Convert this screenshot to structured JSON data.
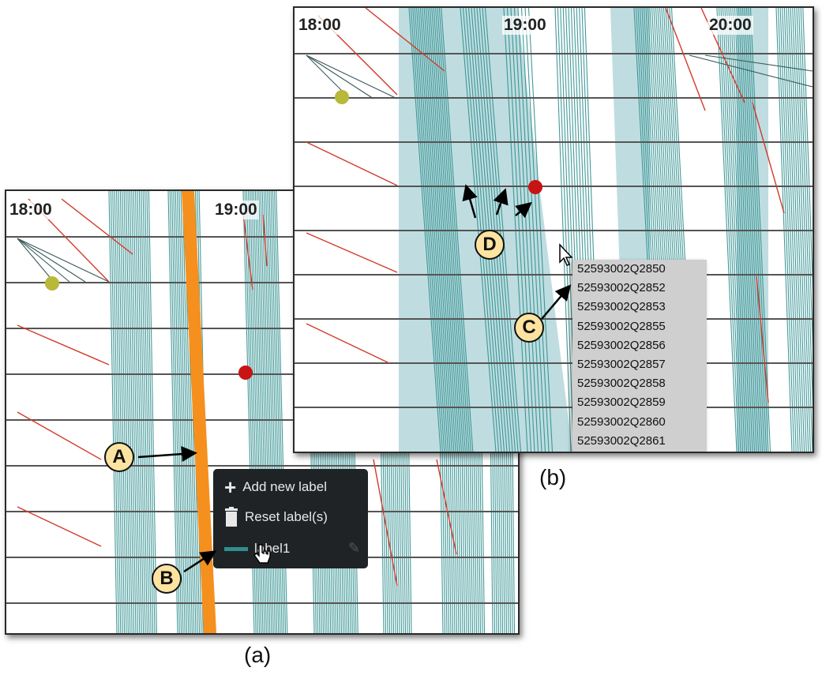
{
  "panel_a": {
    "time_labels": [
      "18:00",
      "19:00"
    ],
    "context_menu": {
      "add_label": "Add new label",
      "reset_label": "Reset label(s)",
      "label_item": "label1"
    }
  },
  "panel_b": {
    "time_labels": [
      "18:00",
      "19:00",
      "20:00"
    ],
    "tooltip_ids": [
      "52593002Q2850",
      "52593002Q2852",
      "52593002Q2853",
      "52593002Q2855",
      "52593002Q2856",
      "52593002Q2857",
      "52593002Q2858",
      "52593002Q2859",
      "52593002Q2860",
      "52593002Q2861"
    ]
  },
  "callouts": {
    "a": "A",
    "b": "B",
    "c": "C",
    "d": "D"
  },
  "captions": {
    "a": "(a)",
    "b": "(b)"
  },
  "colors": {
    "teal": "#2f8f8f",
    "red_line": "#d23b2b",
    "orange": "#f5901e",
    "highlight": "#a9d2d6",
    "dot_yellow": "#b8b83a",
    "dot_red": "#c81414"
  }
}
